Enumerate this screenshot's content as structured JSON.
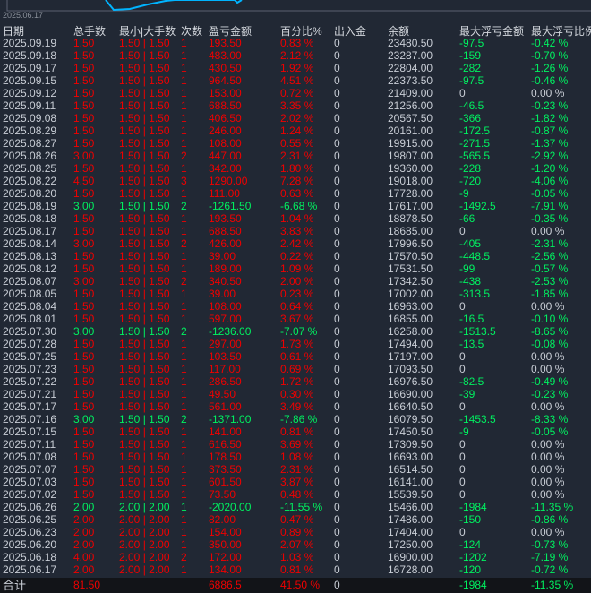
{
  "chart": {
    "axis_date": "2025.06.17",
    "line_color": "#00b4ff"
  },
  "colors": {
    "profit": "#f00000",
    "loss": "#00f060",
    "neutral": "#c9ced6",
    "background": "#212834"
  },
  "headers": [
    "日期",
    "总手数",
    "最小|大手数",
    "次数",
    "盈亏金额",
    "百分比%",
    "出入金",
    "余额",
    "最大浮亏金额",
    "最大浮亏比例"
  ],
  "rows": [
    [
      "2025.09.19",
      "1.50",
      "1.50 | 1.50",
      "1",
      "193.50",
      "0.83 %",
      "0",
      "23480.50",
      "-97.5",
      "-0.42 %"
    ],
    [
      "2025.09.18",
      "1.50",
      "1.50 | 1.50",
      "1",
      "483.00",
      "2.12 %",
      "0",
      "23287.00",
      "-159",
      "-0.70 %"
    ],
    [
      "2025.09.17",
      "1.50",
      "1.50 | 1.50",
      "1",
      "430.50",
      "1.92 %",
      "0",
      "22804.00",
      "-282",
      "-1.26 %"
    ],
    [
      "2025.09.15",
      "1.50",
      "1.50 | 1.50",
      "1",
      "964.50",
      "4.51 %",
      "0",
      "22373.50",
      "-97.5",
      "-0.46 %"
    ],
    [
      "2025.09.12",
      "1.50",
      "1.50 | 1.50",
      "1",
      "153.00",
      "0.72 %",
      "0",
      "21409.00",
      "0",
      "0.00 %"
    ],
    [
      "2025.09.11",
      "1.50",
      "1.50 | 1.50",
      "1",
      "688.50",
      "3.35 %",
      "0",
      "21256.00",
      "-46.5",
      "-0.23 %"
    ],
    [
      "2025.09.08",
      "1.50",
      "1.50 | 1.50",
      "1",
      "406.50",
      "2.02 %",
      "0",
      "20567.50",
      "-366",
      "-1.82 %"
    ],
    [
      "2025.08.29",
      "1.50",
      "1.50 | 1.50",
      "1",
      "246.00",
      "1.24 %",
      "0",
      "20161.00",
      "-172.5",
      "-0.87 %"
    ],
    [
      "2025.08.27",
      "1.50",
      "1.50 | 1.50",
      "1",
      "108.00",
      "0.55 %",
      "0",
      "19915.00",
      "-271.5",
      "-1.37 %"
    ],
    [
      "2025.08.26",
      "3.00",
      "1.50 | 1.50",
      "2",
      "447.00",
      "2.31 %",
      "0",
      "19807.00",
      "-565.5",
      "-2.92 %"
    ],
    [
      "2025.08.25",
      "1.50",
      "1.50 | 1.50",
      "1",
      "342.00",
      "1.80 %",
      "0",
      "19360.00",
      "-228",
      "-1.20 %"
    ],
    [
      "2025.08.22",
      "4.50",
      "1.50 | 1.50",
      "3",
      "1290.00",
      "7.28 %",
      "0",
      "19018.00",
      "-720",
      "-4.06 %"
    ],
    [
      "2025.08.20",
      "1.50",
      "1.50 | 1.50",
      "1",
      "111.00",
      "0.63 %",
      "0",
      "17728.00",
      "-9",
      "-0.05 %"
    ],
    [
      "2025.08.19",
      "3.00",
      "1.50 | 1.50",
      "2",
      "-1261.50",
      "-6.68 %",
      "0",
      "17617.00",
      "-1492.5",
      "-7.91 %"
    ],
    [
      "2025.08.18",
      "1.50",
      "1.50 | 1.50",
      "1",
      "193.50",
      "1.04 %",
      "0",
      "18878.50",
      "-66",
      "-0.35 %"
    ],
    [
      "2025.08.17",
      "1.50",
      "1.50 | 1.50",
      "1",
      "688.50",
      "3.83 %",
      "0",
      "18685.00",
      "0",
      "0.00 %"
    ],
    [
      "2025.08.14",
      "3.00",
      "1.50 | 1.50",
      "2",
      "426.00",
      "2.42 %",
      "0",
      "17996.50",
      "-405",
      "-2.31 %"
    ],
    [
      "2025.08.13",
      "1.50",
      "1.50 | 1.50",
      "1",
      "39.00",
      "0.22 %",
      "0",
      "17570.50",
      "-448.5",
      "-2.56 %"
    ],
    [
      "2025.08.12",
      "1.50",
      "1.50 | 1.50",
      "1",
      "189.00",
      "1.09 %",
      "0",
      "17531.50",
      "-99",
      "-0.57 %"
    ],
    [
      "2025.08.07",
      "3.00",
      "1.50 | 1.50",
      "2",
      "340.50",
      "2.00 %",
      "0",
      "17342.50",
      "-438",
      "-2.53 %"
    ],
    [
      "2025.08.05",
      "1.50",
      "1.50 | 1.50",
      "1",
      "39.00",
      "0.23 %",
      "0",
      "17002.00",
      "-313.5",
      "-1.85 %"
    ],
    [
      "2025.08.04",
      "1.50",
      "1.50 | 1.50",
      "1",
      "108.00",
      "0.64 %",
      "0",
      "16963.00",
      "0",
      "0.00 %"
    ],
    [
      "2025.08.01",
      "1.50",
      "1.50 | 1.50",
      "1",
      "597.00",
      "3.67 %",
      "0",
      "16855.00",
      "-16.5",
      "-0.10 %"
    ],
    [
      "2025.07.30",
      "3.00",
      "1.50 | 1.50",
      "2",
      "-1236.00",
      "-7.07 %",
      "0",
      "16258.00",
      "-1513.5",
      "-8.65 %"
    ],
    [
      "2025.07.28",
      "1.50",
      "1.50 | 1.50",
      "1",
      "297.00",
      "1.73 %",
      "0",
      "17494.00",
      "-13.5",
      "-0.08 %"
    ],
    [
      "2025.07.25",
      "1.50",
      "1.50 | 1.50",
      "1",
      "103.50",
      "0.61 %",
      "0",
      "17197.00",
      "0",
      "0.00 %"
    ],
    [
      "2025.07.23",
      "1.50",
      "1.50 | 1.50",
      "1",
      "117.00",
      "0.69 %",
      "0",
      "17093.50",
      "0",
      "0.00 %"
    ],
    [
      "2025.07.22",
      "1.50",
      "1.50 | 1.50",
      "1",
      "286.50",
      "1.72 %",
      "0",
      "16976.50",
      "-82.5",
      "-0.49 %"
    ],
    [
      "2025.07.21",
      "1.50",
      "1.50 | 1.50",
      "1",
      "49.50",
      "0.30 %",
      "0",
      "16690.00",
      "-39",
      "-0.23 %"
    ],
    [
      "2025.07.17",
      "1.50",
      "1.50 | 1.50",
      "1",
      "561.00",
      "3.49 %",
      "0",
      "16640.50",
      "0",
      "0.00 %"
    ],
    [
      "2025.07.16",
      "3.00",
      "1.50 | 1.50",
      "2",
      "-1371.00",
      "-7.86 %",
      "0",
      "16079.50",
      "-1453.5",
      "-8.33 %"
    ],
    [
      "2025.07.15",
      "1.50",
      "1.50 | 1.50",
      "1",
      "141.00",
      "0.81 %",
      "0",
      "17450.50",
      "-9",
      "-0.05 %"
    ],
    [
      "2025.07.11",
      "1.50",
      "1.50 | 1.50",
      "1",
      "616.50",
      "3.69 %",
      "0",
      "17309.50",
      "0",
      "0.00 %"
    ],
    [
      "2025.07.08",
      "1.50",
      "1.50 | 1.50",
      "1",
      "178.50",
      "1.08 %",
      "0",
      "16693.00",
      "0",
      "0.00 %"
    ],
    [
      "2025.07.07",
      "1.50",
      "1.50 | 1.50",
      "1",
      "373.50",
      "2.31 %",
      "0",
      "16514.50",
      "0",
      "0.00 %"
    ],
    [
      "2025.07.03",
      "1.50",
      "1.50 | 1.50",
      "1",
      "601.50",
      "3.87 %",
      "0",
      "16141.00",
      "0",
      "0.00 %"
    ],
    [
      "2025.07.02",
      "1.50",
      "1.50 | 1.50",
      "1",
      "73.50",
      "0.48 %",
      "0",
      "15539.50",
      "0",
      "0.00 %"
    ],
    [
      "2025.06.26",
      "2.00",
      "2.00 | 2.00",
      "1",
      "-2020.00",
      "-11.55 %",
      "0",
      "15466.00",
      "-1984",
      "-11.35 %"
    ],
    [
      "2025.06.25",
      "2.00",
      "2.00 | 2.00",
      "1",
      "82.00",
      "0.47 %",
      "0",
      "17486.00",
      "-150",
      "-0.86 %"
    ],
    [
      "2025.06.23",
      "2.00",
      "2.00 | 2.00",
      "1",
      "154.00",
      "0.89 %",
      "0",
      "17404.00",
      "0",
      "0.00 %"
    ],
    [
      "2025.06.20",
      "2.00",
      "2.00 | 2.00",
      "1",
      "350.00",
      "2.07 %",
      "0",
      "17250.00",
      "-124",
      "-0.73 %"
    ],
    [
      "2025.06.18",
      "4.00",
      "2.00 | 2.00",
      "2",
      "172.00",
      "1.03 %",
      "0",
      "16900.00",
      "-1202",
      "-7.19 %"
    ],
    [
      "2025.06.17",
      "2.00",
      "2.00 | 2.00",
      "1",
      "134.00",
      "0.81 %",
      "0",
      "16728.00",
      "-120",
      "-0.72 %"
    ]
  ],
  "total": {
    "label": "合计",
    "lots": "81.50",
    "pnl": "6886.5",
    "pct": "41.50 %",
    "io": "0",
    "max_dd": "-1984",
    "max_dd_pct": "-11.35 %"
  }
}
